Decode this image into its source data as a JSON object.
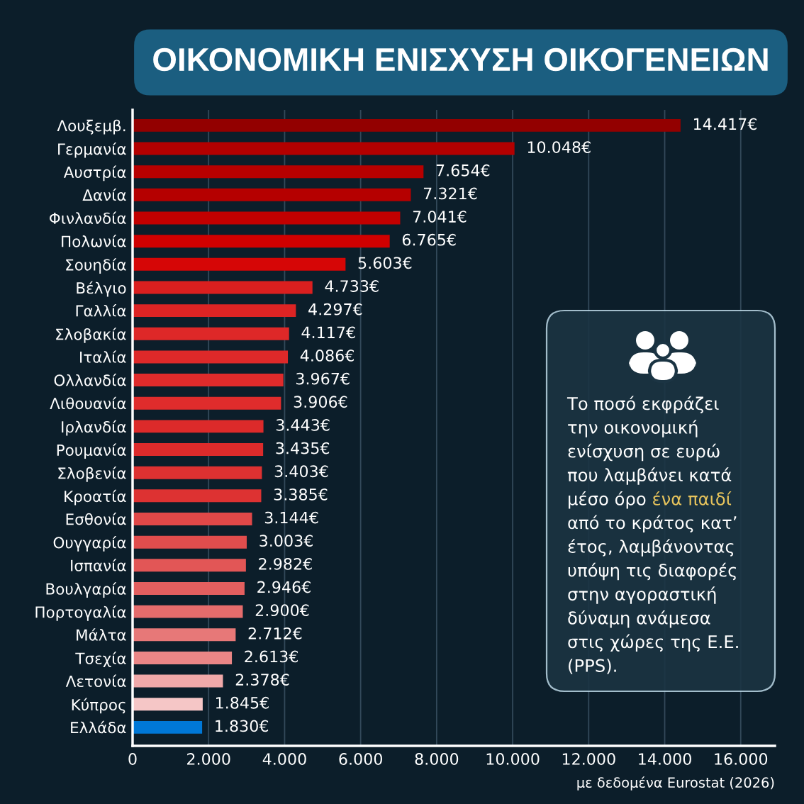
{
  "chart_data": {
    "type": "bar",
    "orientation": "horizontal",
    "title": "ΟΙΚΟΝΟΜΙΚΗ ΕΝΙΣΧΥΣΗ ΟΙΚΟΓΕΝΕΙΩΝ",
    "categories": [
      "Λουξεμβ.",
      "Γερμανία",
      "Αυστρία",
      "Δανία",
      "Φινλανδία",
      "Πολωνία",
      "Σουηδία",
      "Βέλγιο",
      "Γαλλία",
      "Σλοβακία",
      "Ιταλία",
      "Ολλανδία",
      "Λιθουανία",
      "Ιρλανδία",
      "Ρουμανία",
      "Σλοβενία",
      "Κροατία",
      "Εσθονία",
      "Ουγγαρία",
      "Ισπανία",
      "Βουλγαρία",
      "Πορτογαλία",
      "Μάλτα",
      "Τσεχία",
      "Λετονία",
      "Κύπρος",
      "Ελλάδα"
    ],
    "values": [
      14417,
      10048,
      7654,
      7321,
      7041,
      6765,
      5603,
      4733,
      4297,
      4117,
      4086,
      3967,
      3906,
      3443,
      3435,
      3403,
      3385,
      3144,
      3003,
      2982,
      2946,
      2900,
      2712,
      2613,
      2378,
      1845,
      1830
    ],
    "value_labels": [
      "14.417€",
      "10.048€",
      "7.654€",
      "7.321€",
      "7.041€",
      "6.765€",
      "5.603€",
      "4.733€",
      "4.297€",
      "4.117€",
      "4.086€",
      "3.967€",
      "3.906€",
      "3.443€",
      "3.435€",
      "3.403€",
      "3.385€",
      "3.144€",
      "3.003€",
      "2.982€",
      "2.946€",
      "2.900€",
      "2.712€",
      "2.613€",
      "2.378€",
      "1.845€",
      "1.830€"
    ],
    "colors": [
      "#930000",
      "#b30000",
      "#b70000",
      "#b50000",
      "#c20000",
      "#d00000",
      "#d60606",
      "#da1f1f",
      "#dc2424",
      "#de2828",
      "#de2929",
      "#df2b2b",
      "#df2c2c",
      "#dc2a2a",
      "#dc2b2b",
      "#dd3131",
      "#dd3232",
      "#e04848",
      "#e14d4d",
      "#e25656",
      "#e35f5f",
      "#e56c6c",
      "#e77878",
      "#ea8686",
      "#f0a9a9",
      "#f5c6c6",
      "#0078d7"
    ],
    "xlim": [
      0,
      16900
    ],
    "xticks": [
      0,
      {
        "value": 2000,
        "label": "2.000"
      },
      {
        "value": 4000,
        "label": "4.000"
      },
      {
        "value": 6000,
        "label": "6.000"
      },
      {
        "value": 8000,
        "label": "8.000"
      },
      {
        "value": 10000,
        "label": "10.000"
      },
      {
        "value": 12000,
        "label": "12.000"
      },
      {
        "value": 14000,
        "label": "14.000"
      },
      {
        "value": 16000,
        "label": "16.000"
      }
    ],
    "grid": "x",
    "annotations": [
      "Το ποσό εκφράζει\nτην οικονομική\nενίσχυση σε ευρώ\nπου λαμβάνει κατά\nμέσο όρο",
      "ένα παιδί",
      "από το κράτος κατ’\nέτος, λαμβάνοντας\nυπόψη τις διαφορές\nστην αγοραστική\nδύναμη ανάμεσα\nστις χώρες της Ε.Ε.\n(PPS).",
      "με δεδομένα Eurostat (2026)"
    ]
  }
}
